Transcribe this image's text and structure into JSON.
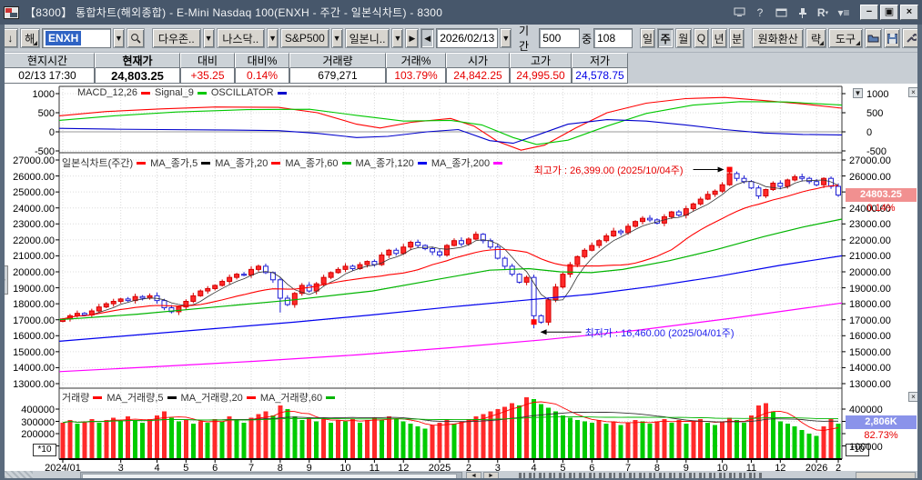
{
  "window": {
    "title": "【8300】  통합차트(해외종합) - E-Mini Nasdaq 100(ENXH - 주간 - 일본식차트) - 8300",
    "title_icons": [
      "monitor-icon",
      "help-icon",
      "window-copy-icon",
      "pin-icon",
      "R-menu-icon",
      "list-icon"
    ],
    "window_buttons": {
      "minimize": "−",
      "maximize": "▣",
      "close": "×"
    }
  },
  "toolbar": {
    "down_button": "↓",
    "market_button": "해",
    "symbol_input": "ENXH",
    "index_buttons": [
      "다우존..",
      "나스닥..",
      "S&P500",
      "일본니.."
    ],
    "nav_next": "▶",
    "nav_prev": "◀",
    "date_value": "2026/02/13",
    "period_label": "기간",
    "period_value": "500",
    "count_label": "중",
    "count_value": "108",
    "timeframes": [
      {
        "label": "일",
        "active": false
      },
      {
        "label": "주",
        "active": true
      },
      {
        "label": "월",
        "active": false
      },
      {
        "label": "Q",
        "active": false
      },
      {
        "label": "년",
        "active": false
      },
      {
        "label": "분",
        "active": false
      }
    ],
    "krw_button": "원화환산",
    "strategy_button": "략",
    "tools_button": "도구"
  },
  "quote": {
    "columns": [
      {
        "header": "현지시간",
        "value": "02/13  17:30",
        "color": "#000000",
        "bold": false
      },
      {
        "header": "현재가",
        "value": "24,803.25",
        "color": "#000000",
        "bold": true
      },
      {
        "header": "대비",
        "value": "+35.25",
        "color": "#e60000",
        "bold": false
      },
      {
        "header": "대비%",
        "value": "0.14%",
        "color": "#e60000",
        "bold": false
      },
      {
        "header": "거래량",
        "value": "679,271",
        "color": "#000000",
        "bold": false
      },
      {
        "header": "거래%",
        "value": "103.79%",
        "color": "#e60000",
        "bold": false
      },
      {
        "header": "시가",
        "value": "24,842.25",
        "color": "#e60000",
        "bold": false
      },
      {
        "header": "고가",
        "value": "24,995.50",
        "color": "#e60000",
        "bold": false
      },
      {
        "header": "저가",
        "value": "24,578.75",
        "color": "#0000e6",
        "bold": false
      }
    ]
  },
  "chart_data": {
    "type": "candlestick",
    "title": "일본식차트(주간)",
    "symbol": "E-Mini Nasdaq 100 (ENXH)",
    "timeframe": "주간",
    "price_axis": {
      "min": 13000,
      "max": 27000,
      "step": 1000,
      "labels": [
        "27000.00",
        "26000.00",
        "25000.00",
        "24000.00",
        "23000.00",
        "22000.00",
        "21000.00",
        "20000.00",
        "19000.00",
        "18000.00",
        "17000.00",
        "16000.00",
        "15000.00",
        "14000.00",
        "13000.00"
      ]
    },
    "x_ticks": [
      [
        "2024/01",
        0
      ],
      [
        "3",
        8
      ],
      [
        "4",
        13
      ],
      [
        "5",
        17
      ],
      [
        "6",
        21
      ],
      [
        "7",
        26
      ],
      [
        "8",
        30
      ],
      [
        "9",
        34
      ],
      [
        "10",
        39
      ],
      [
        "11",
        43
      ],
      [
        "12",
        47
      ],
      [
        "2025",
        52
      ],
      [
        "2",
        56
      ],
      [
        "3",
        60
      ],
      [
        "4",
        65
      ],
      [
        "5",
        69
      ],
      [
        "6",
        73
      ],
      [
        "7",
        78
      ],
      [
        "8",
        82
      ],
      [
        "9",
        86
      ],
      [
        "10",
        91
      ],
      [
        "11",
        95
      ],
      [
        "12",
        99
      ],
      [
        "2026",
        104
      ],
      [
        "2",
        107
      ]
    ],
    "main_legend": [
      {
        "label": "일본식차트(주간)",
        "mark": "#ff0000"
      },
      {
        "label": "MA_종가,5",
        "mark": "#000000"
      },
      {
        "label": "MA_종가,20",
        "mark": "#ff0000"
      },
      {
        "label": "MA_종가,60",
        "mark": "#00b400"
      },
      {
        "label": "MA_종가,120",
        "mark": "#0000ee"
      },
      {
        "label": "MA_종가,200",
        "mark": "#ff00ff"
      }
    ],
    "closes": [
      17050,
      17250,
      17400,
      17300,
      17550,
      17800,
      18000,
      18150,
      18300,
      18200,
      18450,
      18350,
      18500,
      18200,
      17750,
      17500,
      17800,
      18150,
      18500,
      18800,
      18950,
      19150,
      19400,
      19650,
      19850,
      19800,
      20150,
      20350,
      19950,
      19500,
      18350,
      17950,
      18650,
      19150,
      18800,
      19250,
      19650,
      19950,
      20150,
      20350,
      20200,
      20450,
      20650,
      20450,
      21050,
      21350,
      21150,
      21550,
      21850,
      21650,
      21450,
      21250,
      21050,
      21650,
      21950,
      21750,
      22050,
      22350,
      21950,
      21550,
      20850,
      20350,
      19850,
      19350,
      19650,
      17250,
      16850,
      18250,
      19050,
      19850,
      20450,
      20950,
      21350,
      21650,
      21950,
      22250,
      22550,
      22450,
      22850,
      23150,
      23350,
      23250,
      23050,
      23450,
      23750,
      23550,
      23950,
      24250,
      24550,
      24850,
      25050,
      25450,
      26150,
      25850,
      25650,
      25250,
      24750,
      25150,
      25550,
      25350,
      25750,
      25950,
      25850,
      25650,
      25450,
      25850,
      25350,
      24803.25
    ],
    "annotations": {
      "high": {
        "text": "최고가 : 26,399.00 (2025/10/04주)",
        "value": 26399.0,
        "week_index": 92,
        "color": "#e60000"
      },
      "low": {
        "text": "최저가 : 16,460.00 (2025/04/01주)",
        "value": 16460.0,
        "week_index": 65,
        "color": "#2222ee"
      }
    },
    "current_tag": {
      "price": "24803.25",
      "pct": "0.14%",
      "bg": "#f19090"
    },
    "ma_anchors": {
      "ma60": [
        [
          0,
          17000
        ],
        [
          0.1,
          17350
        ],
        [
          0.2,
          17800
        ],
        [
          0.3,
          18250
        ],
        [
          0.4,
          18800
        ],
        [
          0.48,
          19500
        ],
        [
          0.55,
          20100
        ],
        [
          0.6,
          20200
        ],
        [
          0.64,
          20000
        ],
        [
          0.68,
          19950
        ],
        [
          0.72,
          20150
        ],
        [
          0.78,
          20700
        ],
        [
          0.84,
          21400
        ],
        [
          0.9,
          22200
        ],
        [
          0.95,
          22800
        ],
        [
          1,
          23300
        ]
      ],
      "ma120": [
        [
          0,
          15650
        ],
        [
          0.1,
          16050
        ],
        [
          0.2,
          16450
        ],
        [
          0.3,
          16850
        ],
        [
          0.4,
          17300
        ],
        [
          0.5,
          17800
        ],
        [
          0.6,
          18250
        ],
        [
          0.68,
          18600
        ],
        [
          0.76,
          19100
        ],
        [
          0.84,
          19700
        ],
        [
          0.92,
          20400
        ],
        [
          1,
          21000
        ]
      ],
      "ma200": [
        [
          0,
          13750
        ],
        [
          0.12,
          14050
        ],
        [
          0.25,
          14400
        ],
        [
          0.38,
          14800
        ],
        [
          0.5,
          15250
        ],
        [
          0.62,
          15750
        ],
        [
          0.74,
          16350
        ],
        [
          0.86,
          17100
        ],
        [
          1,
          18050
        ]
      ]
    },
    "macd": {
      "legend": [
        {
          "label": "MACD_12,26",
          "mark": "#ff0000"
        },
        {
          "label": "Signal_9",
          "mark": "#00c800"
        },
        {
          "label": "OSCILLATOR",
          "mark": "#0000cc"
        }
      ],
      "axis_labels": [
        "1000",
        "500",
        "0",
        "-500"
      ],
      "series": [
        {
          "name": "MACD_12,26",
          "color": "#ff0000",
          "points": [
            [
              0,
              420
            ],
            [
              0.06,
              530
            ],
            [
              0.13,
              600
            ],
            [
              0.2,
              650
            ],
            [
              0.28,
              640
            ],
            [
              0.33,
              500
            ],
            [
              0.38,
              200
            ],
            [
              0.41,
              100
            ],
            [
              0.45,
              250
            ],
            [
              0.5,
              350
            ],
            [
              0.53,
              150
            ],
            [
              0.56,
              -250
            ],
            [
              0.59,
              -480
            ],
            [
              0.62,
              -350
            ],
            [
              0.66,
              100
            ],
            [
              0.7,
              500
            ],
            [
              0.75,
              750
            ],
            [
              0.8,
              870
            ],
            [
              0.85,
              900
            ],
            [
              0.9,
              820
            ],
            [
              0.95,
              730
            ],
            [
              1,
              620
            ]
          ]
        },
        {
          "name": "Signal_9",
          "color": "#00c800",
          "points": [
            [
              0,
              300
            ],
            [
              0.07,
              420
            ],
            [
              0.15,
              520
            ],
            [
              0.24,
              580
            ],
            [
              0.32,
              590
            ],
            [
              0.38,
              430
            ],
            [
              0.44,
              280
            ],
            [
              0.5,
              300
            ],
            [
              0.54,
              180
            ],
            [
              0.58,
              -150
            ],
            [
              0.61,
              -330
            ],
            [
              0.65,
              -220
            ],
            [
              0.7,
              150
            ],
            [
              0.75,
              480
            ],
            [
              0.81,
              700
            ],
            [
              0.87,
              790
            ],
            [
              0.93,
              780
            ],
            [
              1,
              700
            ]
          ]
        },
        {
          "name": "OSCILLATOR",
          "color": "#0000cc",
          "points": [
            [
              0,
              90
            ],
            [
              0.07,
              70
            ],
            [
              0.13,
              60
            ],
            [
              0.2,
              50
            ],
            [
              0.28,
              30
            ],
            [
              0.33,
              -40
            ],
            [
              0.38,
              -150
            ],
            [
              0.42,
              -120
            ],
            [
              0.47,
              0
            ],
            [
              0.51,
              60
            ],
            [
              0.55,
              -230
            ],
            [
              0.58,
              -300
            ],
            [
              0.61,
              -90
            ],
            [
              0.65,
              200
            ],
            [
              0.7,
              320
            ],
            [
              0.75,
              280
            ],
            [
              0.8,
              180
            ],
            [
              0.85,
              60
            ],
            [
              0.9,
              -30
            ],
            [
              0.95,
              -70
            ],
            [
              1,
              -80
            ]
          ]
        }
      ]
    },
    "volume": {
      "legend": [
        {
          "label": "거래량",
          "mark": "#ff0000"
        },
        {
          "label": "MA_거래량,5",
          "mark": "#000000"
        },
        {
          "label": "MA_거래량,20",
          "mark": "#ff0000"
        },
        {
          "label": "MA_거래량,60",
          "mark": "#00b400"
        }
      ],
      "axis_labels_left": [
        "400000",
        "300000",
        "200000"
      ],
      "axis_labels_right": [
        "400000",
        "100000"
      ],
      "scale_note": "*10",
      "current_tag": {
        "value": "2,806K",
        "pct": "82.73%",
        "bg": "#8a93ea"
      },
      "values": [
        290000,
        310000,
        280000,
        300000,
        320000,
        290000,
        310000,
        330000,
        300000,
        340000,
        310000,
        290000,
        320000,
        350000,
        380000,
        330000,
        300000,
        310000,
        280000,
        300000,
        290000,
        320000,
        300000,
        340000,
        310000,
        290000,
        330000,
        360000,
        380000,
        350000,
        430000,
        400000,
        340000,
        310000,
        330000,
        300000,
        320000,
        290000,
        310000,
        300000,
        320000,
        290000,
        310000,
        330000,
        310000,
        340000,
        320000,
        300000,
        280000,
        260000,
        240000,
        270000,
        290000,
        310000,
        280000,
        300000,
        320000,
        340000,
        360000,
        380000,
        400000,
        420000,
        450000,
        430000,
        496000,
        480000,
        440000,
        410000,
        380000,
        350000,
        330000,
        310000,
        300000,
        290000,
        310000,
        280000,
        300000,
        270000,
        290000,
        310000,
        300000,
        280000,
        300000,
        320000,
        290000,
        310000,
        280000,
        300000,
        320000,
        290000,
        270000,
        300000,
        330000,
        310000,
        290000,
        350000,
        430000,
        450000,
        380000,
        300000,
        280000,
        260000,
        230000,
        200000,
        180000,
        260000,
        320000,
        280600
      ]
    }
  },
  "bottom_bar": {
    "scroll_left": "◄",
    "scroll_right": "►"
  }
}
